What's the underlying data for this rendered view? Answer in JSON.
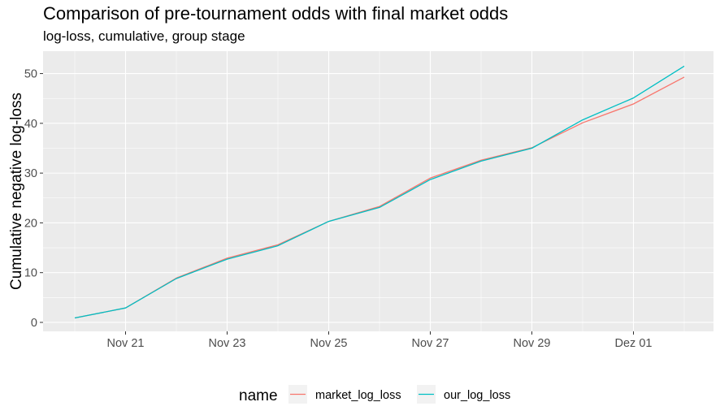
{
  "chart_data": {
    "type": "line",
    "title": "Comparison of pre-tournament odds with final market odds",
    "subtitle": "log-loss, cumulative, group stage",
    "xlabel": "",
    "ylabel": "Cumulative negative log-loss",
    "x": [
      "Nov 20",
      "Nov 21",
      "Nov 22",
      "Nov 23",
      "Nov 24",
      "Nov 25",
      "Nov 26",
      "Nov 27",
      "Nov 28",
      "Nov 29",
      "Nov 30",
      "Dez 01",
      "Dez 02"
    ],
    "xticks": [
      "Nov 21",
      "Nov 23",
      "Nov 25",
      "Nov 27",
      "Nov 29",
      "Dez 01"
    ],
    "ylim": [
      0,
      52
    ],
    "yticks": [
      0,
      10,
      20,
      30,
      40,
      50
    ],
    "grid": true,
    "legend": {
      "title": "name",
      "placement": "bottom"
    },
    "series": [
      {
        "name": "market_log_loss",
        "color": "#F8766D",
        "values": [
          0.9,
          2.9,
          8.9,
          12.9,
          15.6,
          20.3,
          23.3,
          29.0,
          32.6,
          35.1,
          40.1,
          43.9,
          49.3
        ]
      },
      {
        "name": "our_log_loss",
        "color": "#00BFC4",
        "values": [
          0.9,
          2.9,
          8.8,
          12.7,
          15.4,
          20.3,
          23.1,
          28.7,
          32.4,
          35.0,
          40.7,
          45.1,
          51.5
        ]
      }
    ]
  }
}
